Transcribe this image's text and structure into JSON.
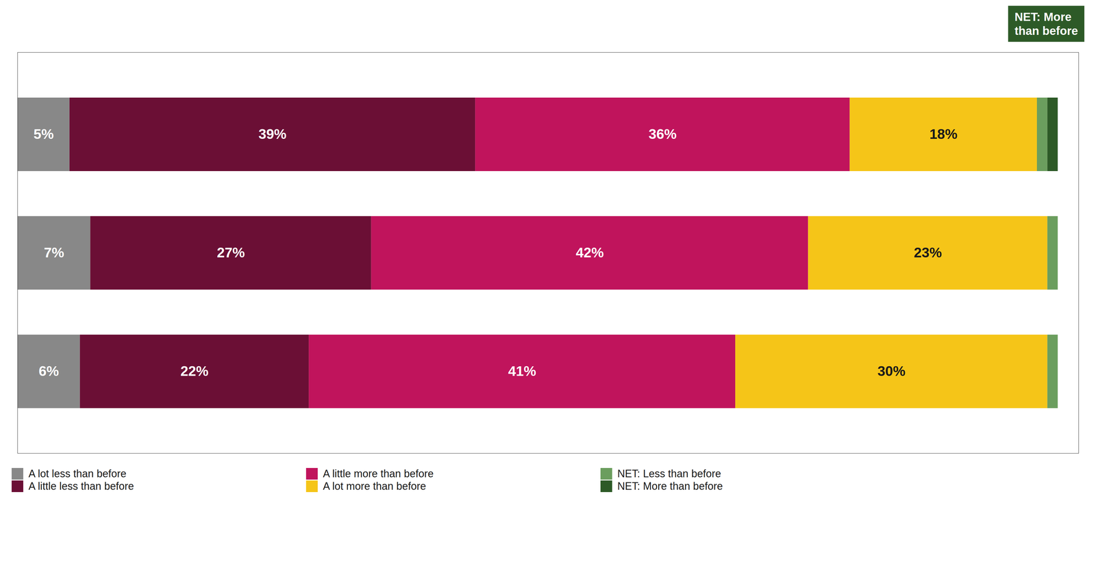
{
  "chart_data": {
    "type": "bar",
    "orientation": "horizontal",
    "stacked": true,
    "categories": [
      null,
      null,
      null
    ],
    "series": [
      {
        "name": "A lot less than before",
        "color": "#888888",
        "values": [
          5,
          7,
          6
        ],
        "value_labels": [
          "5%",
          "7%",
          "6%"
        ]
      },
      {
        "name": "A little less than before",
        "color": "#6b0f35",
        "values": [
          39,
          27,
          22
        ],
        "value_labels": [
          "39%",
          "27%",
          "22%"
        ]
      },
      {
        "name": "A little more than before",
        "color": "#c0145c",
        "values": [
          36,
          42,
          41
        ],
        "value_labels": [
          "36%",
          "42%",
          "41%"
        ]
      },
      {
        "name": "A lot more than before",
        "color": "#f5c518",
        "values": [
          18,
          23,
          30
        ],
        "value_labels": [
          "18%",
          "23%",
          "30%"
        ]
      },
      {
        "name": "NET: Less than before",
        "color": "#6b9e5e",
        "values": [
          1,
          1,
          1
        ]
      },
      {
        "name": "NET: More than before",
        "color": "#2d5a27",
        "values": [
          1,
          0,
          0
        ]
      }
    ],
    "xlim": [
      0,
      102
    ],
    "xticks": [],
    "tick_labels": false,
    "data_labels": true,
    "legend": "bottom",
    "annotations": [
      {
        "text": "NET: More\nthan before",
        "color": "#2d5a27"
      }
    ]
  }
}
